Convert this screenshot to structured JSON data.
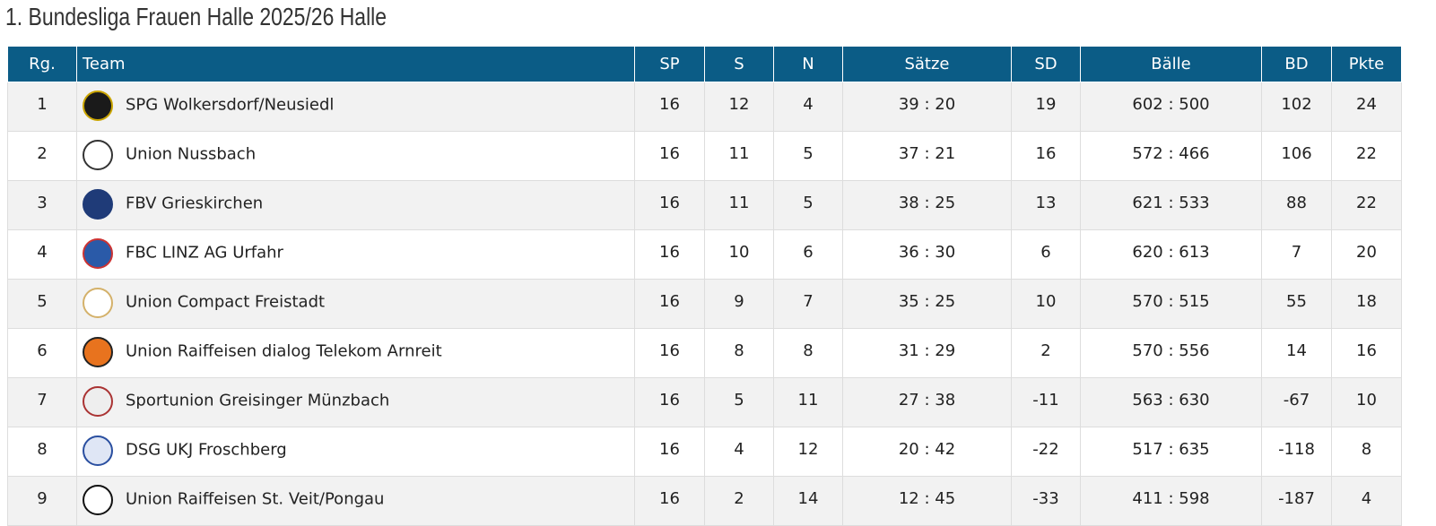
{
  "title": "1. Bundesliga Frauen Halle 2025/26 Halle",
  "table": {
    "header": [
      "Rg.",
      "Team",
      "SP",
      "S",
      "N",
      "Sätze",
      "SD",
      "Bälle",
      "BD",
      "Pkte"
    ],
    "rows": [
      [
        "1",
        "SPG Wolkersdorf/Neusiedl",
        "16",
        "12",
        "4",
        "39 : 20",
        "19",
        "602 : 500",
        "102",
        "24"
      ],
      [
        "2",
        "Union Nussbach",
        "16",
        "11",
        "5",
        "37 : 21",
        "16",
        "572 : 466",
        "106",
        "22"
      ],
      [
        "3",
        "FBV Grieskirchen",
        "16",
        "11",
        "5",
        "38 : 25",
        "13",
        "621 : 533",
        "88",
        "22"
      ],
      [
        "4",
        "FBC LINZ AG Urfahr",
        "16",
        "10",
        "6",
        "36 : 30",
        "6",
        "620 : 613",
        "7",
        "20"
      ],
      [
        "5",
        "Union Compact Freistadt",
        "16",
        "9",
        "7",
        "35 : 25",
        "10",
        "570 : 515",
        "55",
        "18"
      ],
      [
        "6",
        "Union Raiffeisen dialog Telekom Arnreit",
        "16",
        "8",
        "8",
        "31 : 29",
        "2",
        "570 : 556",
        "14",
        "16"
      ],
      [
        "7",
        "Sportunion Greisinger Münzbach",
        "16",
        "5",
        "11",
        "27 : 38",
        "-11",
        "563 : 630",
        "-67",
        "10"
      ],
      [
        "8",
        "DSG UKJ Froschberg",
        "16",
        "4",
        "12",
        "20 : 42",
        "-22",
        "517 : 635",
        "-118",
        "8"
      ],
      [
        "9",
        "Union Raiffeisen St. Veit/Pongau",
        "16",
        "2",
        "14",
        "12 : 45",
        "-33",
        "411 : 598",
        "-187",
        "4"
      ]
    ]
  }
}
